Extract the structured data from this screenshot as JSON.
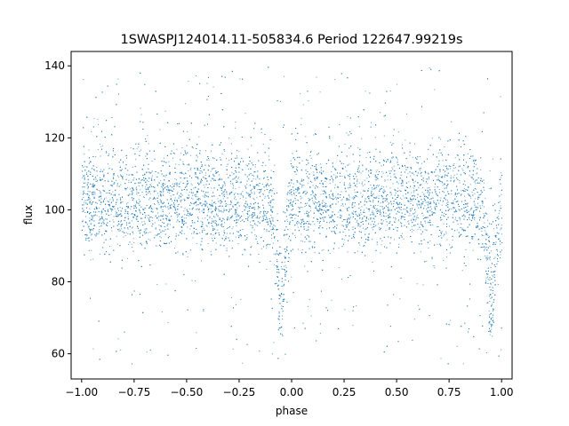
{
  "chart_data": {
    "type": "scatter",
    "title": "1SWASPJ124014.11-505834.6 Period 122647.99219s",
    "xlabel": "phase",
    "ylabel": "flux",
    "xlim": [
      -1.05,
      1.05
    ],
    "ylim": [
      53,
      144
    ],
    "xticks": [
      -1.0,
      -0.75,
      -0.5,
      -0.25,
      0.0,
      0.25,
      0.5,
      0.75,
      1.0
    ],
    "xtick_labels": [
      "−1.00",
      "−0.75",
      "−0.50",
      "−0.25",
      "0.00",
      "0.25",
      "0.50",
      "0.75",
      "1.00"
    ],
    "yticks": [
      60,
      80,
      100,
      120,
      140
    ],
    "ytick_labels": [
      "60",
      "80",
      "100",
      "120",
      "140"
    ],
    "grid": false,
    "point_color": "#1f77b4",
    "light_curve": {
      "baseline_flux": 99,
      "upper_band_flux": 109,
      "band_spread": 5,
      "primary_eclipses": [
        {
          "phase": -0.05,
          "min_flux": 65,
          "core_flux": 77
        },
        {
          "phase": 0.95,
          "min_flux": 65,
          "core_flux": 77
        }
      ],
      "scatter_range": [
        57,
        140
      ]
    }
  }
}
